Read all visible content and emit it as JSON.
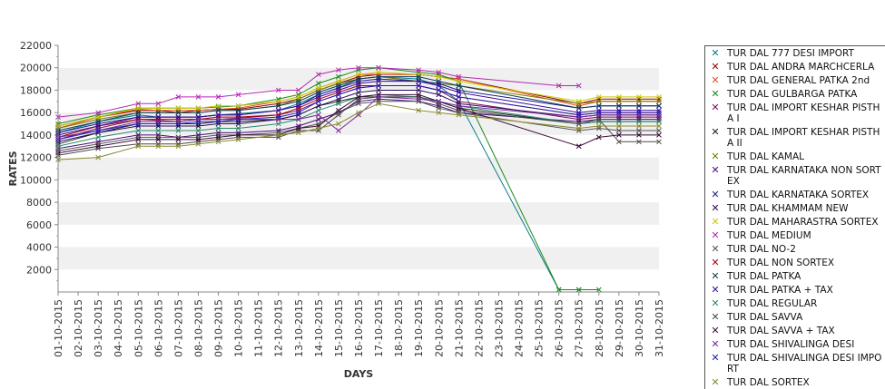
{
  "chart_data": {
    "type": "line",
    "title": "",
    "xlabel": "DAYS",
    "ylabel": "RATES",
    "ylim": [
      0,
      22000
    ],
    "yticks": [
      2000,
      4000,
      6000,
      8000,
      10000,
      12000,
      14000,
      16000,
      18000,
      20000,
      22000
    ],
    "y_tick_labels": [
      "2000",
      "4000",
      "6000",
      "8000",
      "10000",
      "12000",
      "14000",
      "16000",
      "18000",
      "20000",
      "22000"
    ],
    "categories": [
      "01-10-2015",
      "02-10-2015",
      "03-10-2015",
      "04-10-2015",
      "05-10-2015",
      "06-10-2015",
      "07-10-2015",
      "08-10-2015",
      "09-10-2015",
      "10-10-2015",
      "11-10-2015",
      "12-10-2015",
      "13-10-2015",
      "14-10-2015",
      "15-10-2015",
      "16-10-2015",
      "17-10-2015",
      "18-10-2015",
      "19-10-2015",
      "20-10-2015",
      "21-10-2015",
      "22-10-2015",
      "23-10-2015",
      "24-10-2015",
      "25-10-2015",
      "26-10-2015",
      "27-10-2015",
      "28-10-2015",
      "29-10-2015",
      "30-10-2015",
      "31-10-2015"
    ],
    "grid": "horizontal bands",
    "legend_position": "right",
    "series": [
      {
        "name": "TUR DAL  777 DESI IMPORT",
        "color": "#0a7c8c",
        "values": [
          14200,
          null,
          15200,
          null,
          15800,
          15600,
          15600,
          15600,
          15800,
          15900,
          null,
          16200,
          16800,
          17600,
          18200,
          19000,
          19200,
          null,
          19000,
          18400,
          17000,
          null,
          null,
          null,
          null,
          200,
          200,
          null,
          null,
          null,
          null
        ]
      },
      {
        "name": "TUR DAL ANDRA MARCHCERLA",
        "color": "#8b0000",
        "values": [
          14800,
          null,
          15600,
          null,
          16200,
          16200,
          16000,
          16200,
          16300,
          16300,
          null,
          16800,
          17200,
          18000,
          18600,
          19200,
          19400,
          null,
          19400,
          19200,
          19000,
          null,
          null,
          null,
          null,
          null,
          16800,
          17200,
          17200,
          17200,
          17200
        ]
      },
      {
        "name": "TUR DAL GENERAL PATKA 2nd",
        "color": "#e84a1c",
        "values": [
          14600,
          null,
          15600,
          null,
          16300,
          16200,
          16200,
          16200,
          16300,
          16400,
          null,
          17000,
          17400,
          18200,
          18800,
          19400,
          19400,
          null,
          19400,
          19200,
          19000,
          null,
          null,
          null,
          null,
          null,
          16600,
          17000,
          17000,
          17000,
          17000
        ]
      },
      {
        "name": "TUR DAL GULBARGA PATKA",
        "color": "#1a8a1a",
        "values": [
          15000,
          null,
          15800,
          null,
          16400,
          16400,
          16400,
          16400,
          16500,
          16600,
          null,
          17200,
          17600,
          18600,
          19200,
          19800,
          20000,
          null,
          19600,
          19400,
          18800,
          null,
          null,
          null,
          null,
          200,
          200,
          200,
          null,
          null,
          null
        ]
      },
      {
        "name": "TUR DAL IMPORT KESHAR PISTHA I",
        "color": "#7a0a5a",
        "values": [
          13600,
          null,
          14600,
          null,
          15400,
          15300,
          15200,
          15400,
          15400,
          15500,
          null,
          15800,
          16200,
          17000,
          17600,
          18200,
          18400,
          null,
          18400,
          18000,
          17000,
          null,
          null,
          null,
          null,
          null,
          15400,
          15600,
          15600,
          15600,
          15600
        ]
      },
      {
        "name": "TUR DAL IMPORT KESHAR PISTHA II",
        "color": "#222222",
        "values": [
          13200,
          null,
          14200,
          null,
          15000,
          15000,
          15000,
          15000,
          15200,
          15200,
          null,
          15400,
          15800,
          16600,
          17000,
          17400,
          17400,
          null,
          17400,
          17000,
          16400,
          null,
          null,
          null,
          null,
          null,
          15000,
          15200,
          15200,
          15200,
          15200
        ]
      },
      {
        "name": "TUR DAL KAMAL",
        "color": "#7a7a00",
        "values": [
          14600,
          null,
          15400,
          null,
          16000,
          16000,
          16000,
          16000,
          16200,
          16200,
          null,
          16600,
          17200,
          18000,
          18600,
          19000,
          19200,
          null,
          18800,
          18600,
          18400,
          null,
          null,
          null,
          null,
          null,
          16800,
          17000,
          17000,
          17000,
          17000
        ]
      },
      {
        "name": "TUR DAL KARNATAKA NON SORTEX",
        "color": "#4a0a7a",
        "values": [
          12800,
          null,
          13400,
          null,
          14000,
          14000,
          13800,
          14000,
          14200,
          14200,
          null,
          14400,
          14800,
          15400,
          16000,
          17000,
          17200,
          null,
          17000,
          16600,
          16000,
          null,
          null,
          null,
          null,
          null,
          15200,
          15400,
          15400,
          15400,
          15400
        ]
      },
      {
        "name": "TUR DAL KARNATAKA SORTEX",
        "color": "#1a1a8a",
        "values": [
          14200,
          null,
          15000,
          null,
          15600,
          15600,
          15600,
          15600,
          15800,
          15800,
          null,
          16200,
          16600,
          17600,
          18200,
          18800,
          19000,
          null,
          18800,
          18600,
          18000,
          null,
          null,
          null,
          null,
          null,
          16400,
          16600,
          16600,
          16600,
          16600
        ]
      },
      {
        "name": "TUR DAL KHAMMAM NEW",
        "color": "#2a0a5a",
        "values": [
          13400,
          null,
          14200,
          null,
          14800,
          14800,
          14800,
          14800,
          15000,
          15000,
          null,
          15400,
          15800,
          16600,
          17200,
          17800,
          18000,
          null,
          18000,
          17600,
          16800,
          null,
          null,
          null,
          null,
          null,
          15600,
          15800,
          15800,
          15800,
          15800
        ]
      },
      {
        "name": "TUR DAL MAHARASTRA SORTEX",
        "color": "#c8c800",
        "values": [
          14800,
          null,
          15600,
          null,
          16400,
          16400,
          16400,
          16400,
          16600,
          16600,
          null,
          17000,
          17400,
          18200,
          18800,
          19400,
          19600,
          null,
          19400,
          19200,
          18800,
          null,
          null,
          null,
          null,
          null,
          17000,
          17400,
          17400,
          17400,
          17400
        ]
      },
      {
        "name": "TUR DAL MEDIUM",
        "color": "#b42ab4",
        "values": [
          15600,
          null,
          16000,
          null,
          16800,
          16800,
          17400,
          17400,
          17400,
          17600,
          null,
          18000,
          18000,
          19400,
          19800,
          20000,
          20000,
          null,
          19800,
          19600,
          19200,
          null,
          null,
          null,
          null,
          18400,
          18400,
          null,
          null,
          null,
          null
        ]
      },
      {
        "name": "TUR DAL NO-2",
        "color": "#555555",
        "values": [
          12600,
          null,
          13200,
          null,
          13800,
          13800,
          13800,
          13800,
          14000,
          14000,
          null,
          14200,
          14600,
          15000,
          16000,
          16800,
          17000,
          null,
          17000,
          16400,
          16000,
          null,
          null,
          null,
          null,
          null,
          14400,
          14600,
          14400,
          14400,
          14400
        ]
      },
      {
        "name": "TUR DAL NON SORTEX",
        "color": "#aa0000",
        "values": [
          13800,
          null,
          14800,
          null,
          15400,
          15400,
          15400,
          15400,
          15600,
          15600,
          null,
          15800,
          16400,
          17200,
          17800,
          18400,
          18400,
          null,
          18400,
          18000,
          17400,
          null,
          null,
          null,
          null,
          null,
          15800,
          16000,
          16000,
          16000,
          16000
        ]
      },
      {
        "name": "TUR DAL PATKA",
        "color": "#0a3a5a",
        "values": [
          14400,
          null,
          15200,
          null,
          16000,
          16000,
          16000,
          16000,
          16200,
          16200,
          null,
          16600,
          17000,
          17800,
          18400,
          19000,
          19200,
          null,
          19200,
          18800,
          18400,
          null,
          null,
          null,
          null,
          null,
          16400,
          16600,
          16600,
          16600,
          16600
        ]
      },
      {
        "name": "TUR DAL PATKA + TAX",
        "color": "#3a0a9a",
        "values": [
          14000,
          null,
          14800,
          null,
          15600,
          15600,
          15600,
          15600,
          15800,
          15800,
          null,
          16200,
          16600,
          17400,
          18000,
          18600,
          18800,
          null,
          18800,
          18400,
          17800,
          null,
          null,
          null,
          null,
          null,
          16000,
          16200,
          16200,
          16200,
          16200
        ]
      },
      {
        "name": "TUR DAL REGULAR",
        "color": "#2a8a6a",
        "values": [
          13000,
          null,
          13800,
          null,
          14400,
          14400,
          14400,
          14400,
          14600,
          14600,
          null,
          15000,
          15400,
          16200,
          16800,
          17400,
          17600,
          null,
          17400,
          17000,
          16600,
          null,
          null,
          null,
          null,
          null,
          15000,
          15200,
          15200,
          15200,
          15200
        ]
      },
      {
        "name": "TUR DAL SAVVA",
        "color": "#4a4a4a",
        "values": [
          12200,
          null,
          12800,
          null,
          13200,
          13200,
          13200,
          13400,
          13600,
          13800,
          null,
          13800,
          14400,
          14400,
          15800,
          17200,
          17400,
          null,
          17400,
          16800,
          16200,
          null,
          null,
          null,
          null,
          null,
          15000,
          15400,
          13400,
          13400,
          13400
        ]
      },
      {
        "name": "TUR DAL SAVVA + TAX",
        "color": "#3a0a3a",
        "values": [
          12400,
          null,
          13000,
          null,
          13600,
          13600,
          13600,
          13600,
          13800,
          14000,
          null,
          14000,
          14600,
          14800,
          16200,
          17400,
          17600,
          null,
          17600,
          17000,
          16400,
          null,
          null,
          null,
          null,
          null,
          13000,
          13800,
          14000,
          14000,
          14000
        ]
      },
      {
        "name": "TUR DAL SHIVALINGA DESI",
        "color": "#7a2a9a",
        "values": [
          13800,
          null,
          14400,
          null,
          15200,
          15200,
          15200,
          15400,
          15400,
          15400,
          null,
          15400,
          15400,
          15800,
          14400,
          15800,
          17400,
          null,
          17200,
          17000,
          16600,
          null,
          null,
          null,
          null,
          null,
          15600,
          15800,
          15800,
          15800,
          15800
        ]
      },
      {
        "name": "TUR DAL SHIVALINGA DESI IMPORT",
        "color": "#2020c0",
        "values": [
          13600,
          null,
          14400,
          null,
          15000,
          15000,
          15000,
          15200,
          15200,
          15400,
          null,
          15600,
          16000,
          17000,
          17600,
          18200,
          18400,
          null,
          18400,
          18000,
          17400,
          null,
          null,
          null,
          null,
          null,
          15800,
          16000,
          16000,
          16000,
          16000
        ]
      },
      {
        "name": "TUR DAL SORTEX",
        "color": "#8a8a30",
        "values": [
          11800,
          null,
          12000,
          null,
          13000,
          13000,
          13000,
          13200,
          13400,
          13600,
          null,
          14000,
          14200,
          14600,
          15000,
          16000,
          16800,
          null,
          16200,
          16000,
          15800,
          null,
          null,
          null,
          null,
          null,
          14600,
          14800,
          14800,
          14800,
          14800
        ]
      }
    ]
  }
}
